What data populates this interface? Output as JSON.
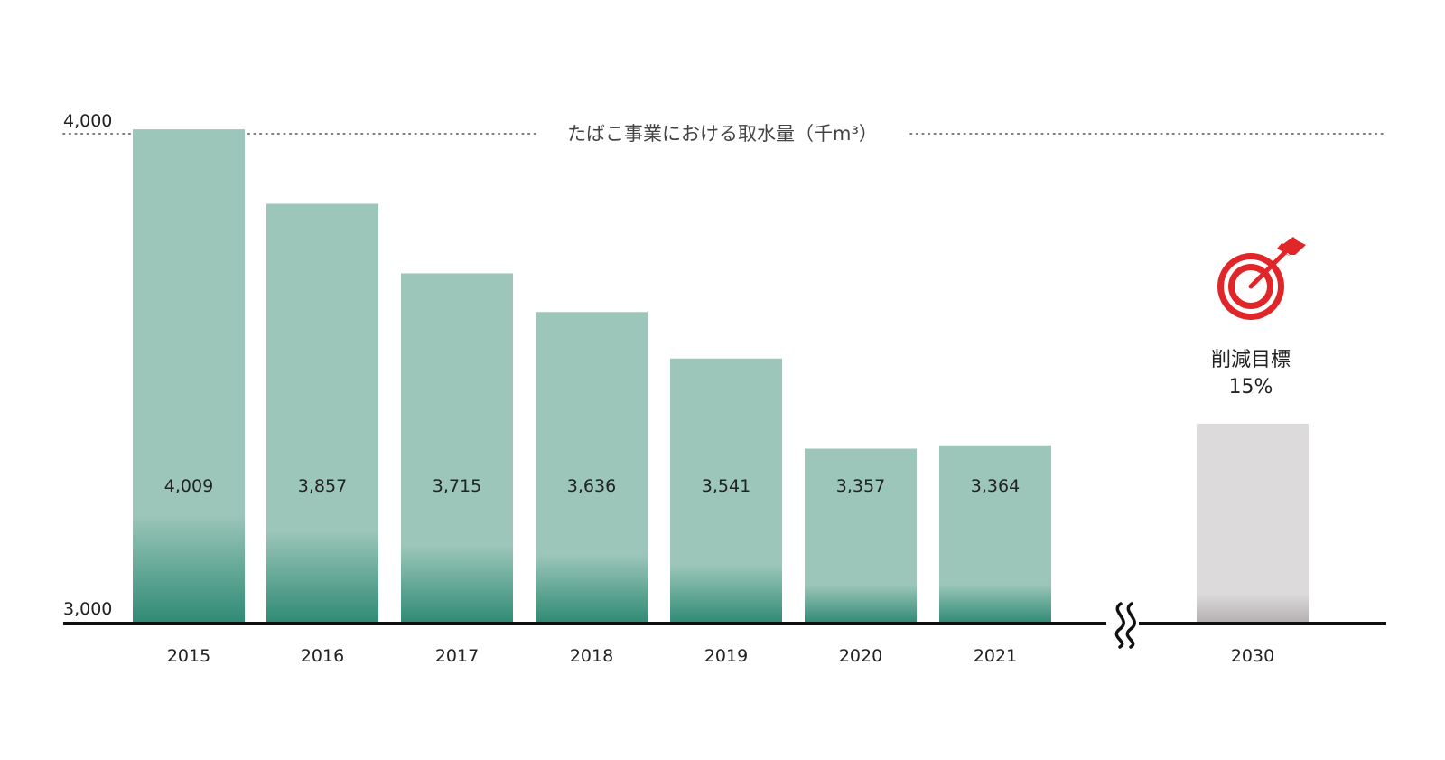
{
  "chart_data": {
    "type": "bar",
    "title": "たばこ事業における取水量（千m³）",
    "categories": [
      "2015",
      "2016",
      "2017",
      "2018",
      "2019",
      "2020",
      "2021",
      "2030"
    ],
    "values": [
      4009,
      3857,
      3715,
      3636,
      3541,
      3357,
      3364,
      3408
    ],
    "value_labels": [
      "4,009",
      "3,857",
      "3,715",
      "3,636",
      "3,541",
      "3,357",
      "3,364",
      ""
    ],
    "yticks": [
      "3,000",
      "4,000"
    ],
    "ylim": [
      3000,
      4000
    ],
    "axis_break_between": [
      "2021",
      "2030"
    ],
    "target": {
      "category": "2030",
      "label": "削減目標",
      "percent": "15%",
      "icon": "target-icon"
    },
    "colors": {
      "bar_top": "#9bc6b9",
      "bar_bottom": "#2e8a74",
      "target_bar_top": "#dcdadb",
      "target_bar_bottom": "#b3aeb0",
      "target_icon": "#e1262a"
    }
  }
}
